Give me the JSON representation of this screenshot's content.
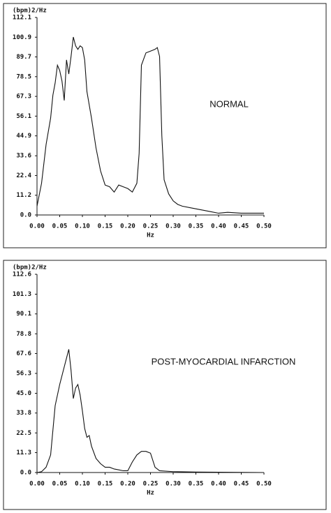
{
  "chart_data": [
    {
      "type": "line",
      "ylabel": "(bpm)2/Hz",
      "xlabel": "Hz",
      "annotation": "NORMAL",
      "color": "#111111",
      "x": [
        0,
        0.01,
        0.02,
        0.03,
        0.035,
        0.04,
        0.045,
        0.05,
        0.055,
        0.06,
        0.065,
        0.07,
        0.075,
        0.08,
        0.085,
        0.09,
        0.095,
        0.1,
        0.105,
        0.11,
        0.12,
        0.13,
        0.14,
        0.15,
        0.16,
        0.17,
        0.18,
        0.19,
        0.2,
        0.21,
        0.22,
        0.225,
        0.23,
        0.24,
        0.25,
        0.26,
        0.265,
        0.27,
        0.275,
        0.28,
        0.29,
        0.3,
        0.31,
        0.32,
        0.34,
        0.36,
        0.38,
        0.4,
        0.42,
        0.45,
        0.5
      ],
      "values": [
        5,
        18,
        40,
        55,
        68,
        75,
        85,
        82,
        76,
        65,
        88,
        80,
        90,
        101,
        96,
        94,
        96,
        95,
        88,
        70,
        55,
        38,
        25,
        17,
        16,
        13,
        17,
        16,
        15,
        13,
        18,
        35,
        85,
        92,
        93,
        94,
        95,
        90,
        45,
        20,
        12,
        8,
        6,
        5,
        4,
        3,
        2,
        1,
        1.5,
        1,
        1
      ],
      "xlim": [
        0,
        0.5
      ],
      "ylim": [
        0,
        112.1
      ],
      "xticks": [
        {
          "value": 0,
          "label": "0.00"
        },
        0.05,
        {
          "value": 0.1,
          "label": "0.10"
        },
        0.15,
        {
          "value": 0.2,
          "label": "0.20"
        },
        0.25,
        {
          "value": 0.3,
          "label": "0.30"
        },
        0.35,
        {
          "value": 0.4,
          "label": "0.40"
        },
        0.45,
        {
          "value": 0.5,
          "label": "0.50"
        }
      ],
      "yticks": [
        {
          "value": 0,
          "label": "0.0"
        },
        11.2,
        22.4,
        33.6,
        44.9,
        56.1,
        67.3,
        78.5,
        89.7,
        100.9,
        112.1
      ]
    },
    {
      "type": "line",
      "ylabel": "(bpm)2/Hz",
      "xlabel": "Hz",
      "annotation": "POST-MYOCARDIAL INFARCTION",
      "color": "#111111",
      "x": [
        0,
        0.01,
        0.02,
        0.03,
        0.04,
        0.05,
        0.055,
        0.06,
        0.065,
        0.07,
        0.075,
        0.08,
        0.085,
        0.09,
        0.095,
        0.1,
        0.105,
        0.11,
        0.115,
        0.12,
        0.13,
        0.14,
        0.15,
        0.16,
        0.17,
        0.18,
        0.19,
        0.2,
        0.21,
        0.22,
        0.23,
        0.24,
        0.25,
        0.26,
        0.27,
        0.3,
        0.35,
        0.4,
        0.45,
        0.5
      ],
      "values": [
        0,
        0.5,
        3,
        10,
        38,
        50,
        55,
        60,
        65,
        70,
        58,
        42,
        48,
        50,
        44,
        35,
        25,
        20,
        21,
        15,
        8,
        5,
        3,
        3,
        2,
        1.5,
        1,
        1,
        6,
        10,
        12,
        12,
        11,
        3,
        1,
        0.5,
        0.3,
        0.2,
        0.1,
        0
      ],
      "xlim": [
        0,
        0.5
      ],
      "ylim": [
        0,
        112.6
      ],
      "xticks": [
        {
          "value": 0,
          "label": "0.00"
        },
        0.05,
        {
          "value": 0.1,
          "label": "0.10"
        },
        0.15,
        {
          "value": 0.2,
          "label": "0.20"
        },
        0.25,
        {
          "value": 0.3,
          "label": "0.30"
        },
        0.35,
        {
          "value": 0.4,
          "label": "0.40"
        },
        0.45,
        {
          "value": 0.5,
          "label": "0.50"
        }
      ],
      "yticks": [
        {
          "value": 0,
          "label": "0.0"
        },
        11.3,
        22.5,
        33.8,
        {
          "value": 45,
          "label": "45.0"
        },
        56.3,
        67.6,
        78.8,
        90.1,
        101.3,
        112.6
      ]
    }
  ]
}
